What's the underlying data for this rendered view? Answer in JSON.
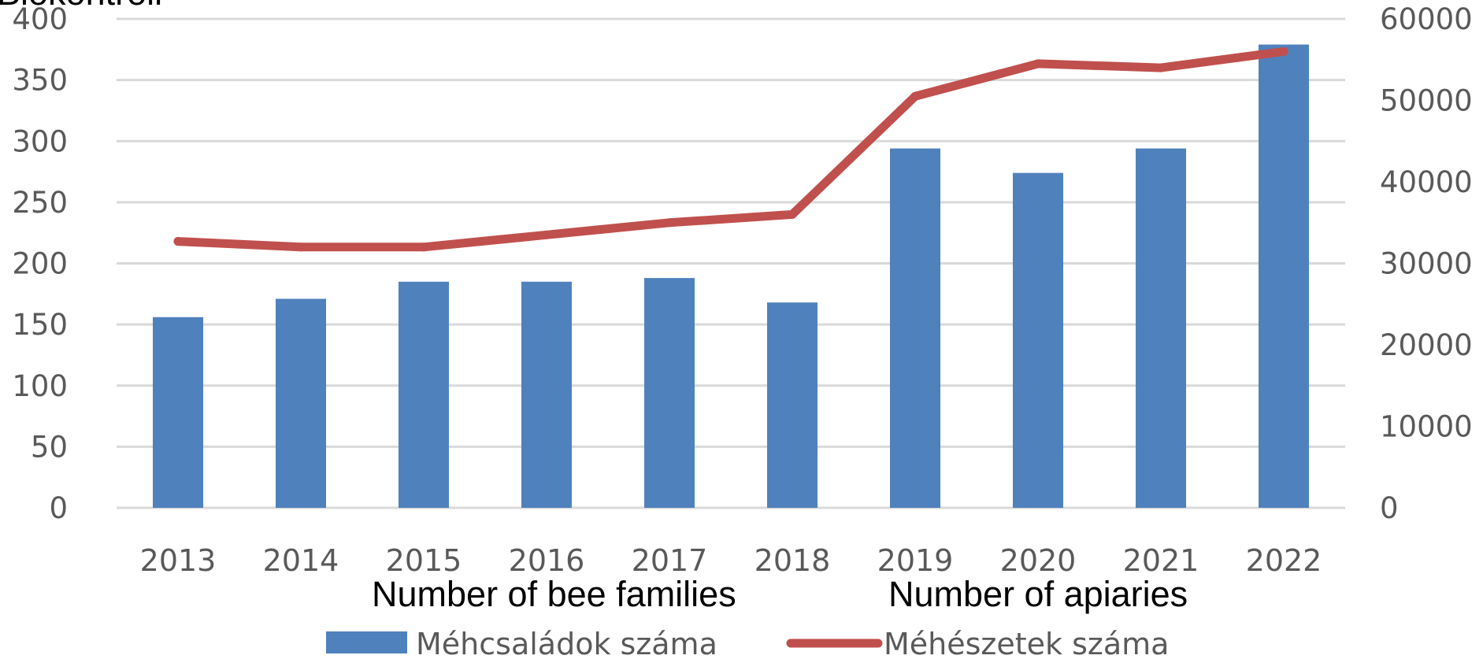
{
  "chart_data": {
    "type": "bar",
    "categories": [
      "2013",
      "2014",
      "2015",
      "2016",
      "2017",
      "2018",
      "2019",
      "2020",
      "2021",
      "2022"
    ],
    "series": [
      {
        "name": "Méhcsaládok száma",
        "type": "bar",
        "axis": "left",
        "color": "#4f81bd",
        "values": [
          156,
          171,
          185,
          185,
          188,
          168,
          294,
          274,
          294,
          379
        ]
      },
      {
        "name": "Méhészetek száma",
        "type": "line",
        "axis": "right",
        "color": "#c0504d",
        "values": [
          32700,
          32000,
          32000,
          33500,
          35000,
          36000,
          50500,
          54500,
          54000,
          56000
        ]
      }
    ],
    "y_left": {
      "min": 0,
      "max": 400,
      "step": 50
    },
    "y_right": {
      "min": 0,
      "max": 60000,
      "step": 10000
    },
    "grid": true,
    "legend_position": "bottom",
    "top_fragment": "Biokontroll",
    "annotations": [
      "Number of bee families",
      "Number of apiaries"
    ]
  }
}
